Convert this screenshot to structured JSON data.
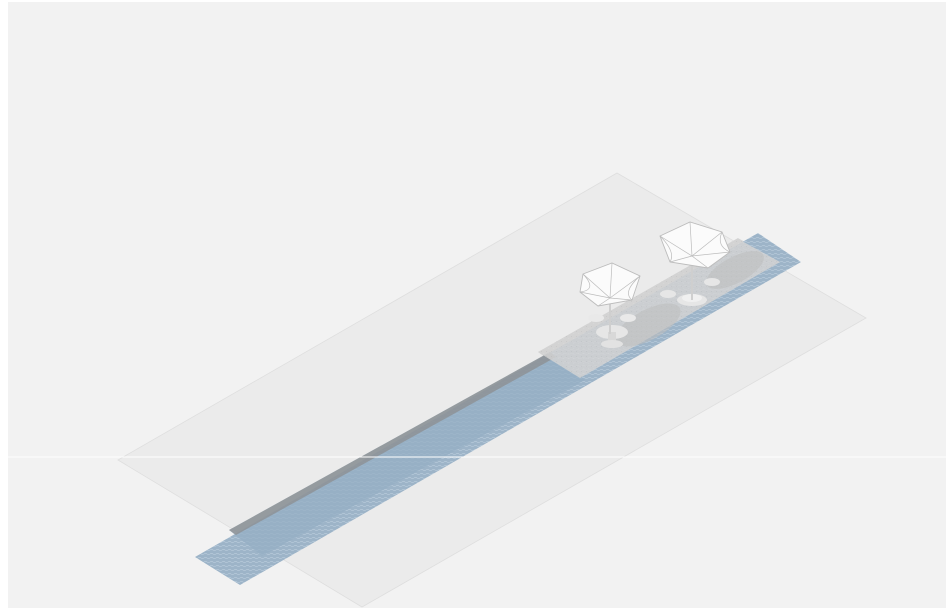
{
  "scene": {
    "kind": "isometric-illustration",
    "subject": "waterfront-promenade-with-umbrellas",
    "colors": {
      "page": "#ffffff",
      "background": "#f2f2f2",
      "ground_plane": "#ebebeb",
      "plane_edge": "#dedede",
      "paving": "#d6d6d6",
      "water_light": "#b3c8da",
      "water_mid": "#95afc4",
      "water_dark": "#7d97ad",
      "canal_wall": "#8c8c8c",
      "shadow": "#bdbdbd",
      "umbrella": "#fbfbfb",
      "umbrella_line": "#bcbcbc",
      "table": "#e6e6e6",
      "seam": "#ffffff"
    },
    "elements": [
      "ground-plane",
      "canal-water",
      "canal-wall",
      "paved-terrace",
      "umbrella-left",
      "umbrella-right",
      "cafe-table-left",
      "cafe-table-right"
    ]
  }
}
